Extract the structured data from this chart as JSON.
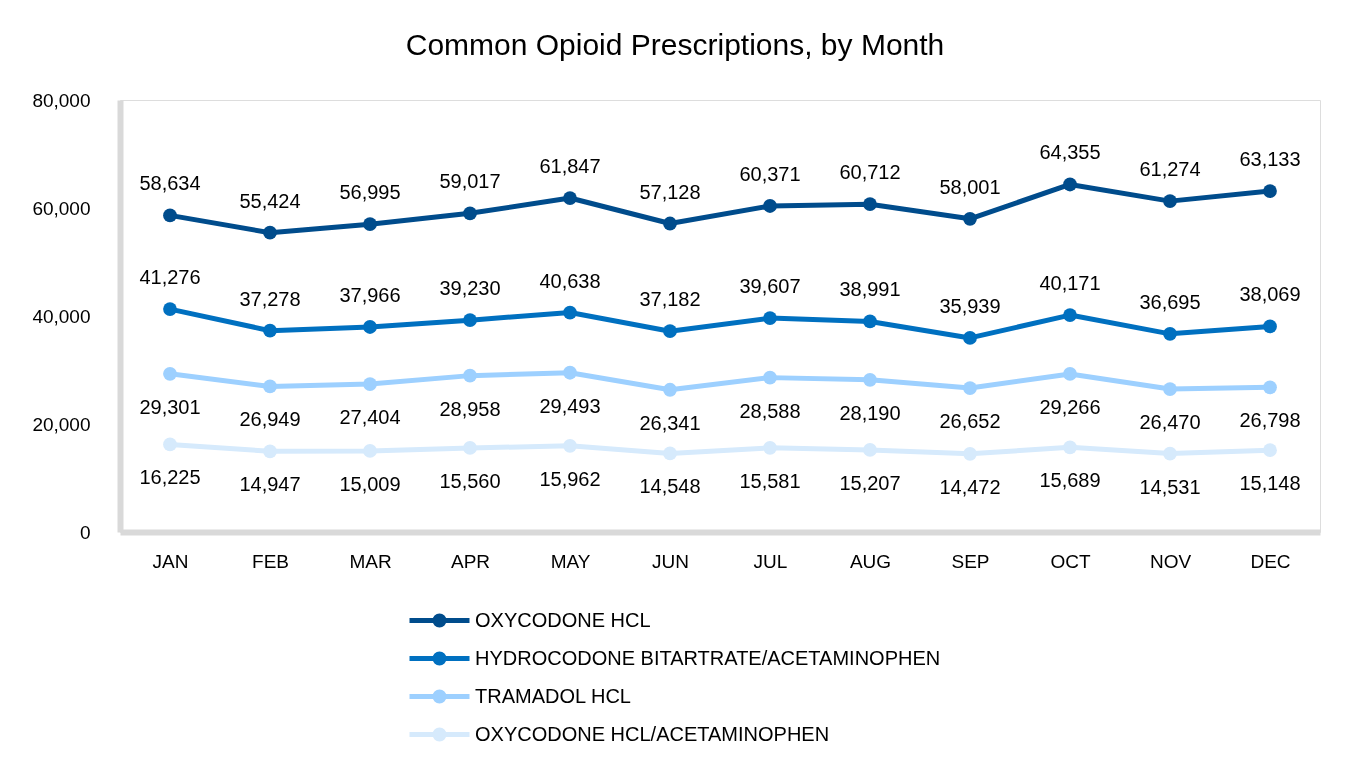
{
  "chart_data": {
    "type": "line",
    "title": "Common Opioid Prescriptions, by Month",
    "categories": [
      "JAN",
      "FEB",
      "MAR",
      "APR",
      "MAY",
      "JUN",
      "JUL",
      "AUG",
      "SEP",
      "OCT",
      "NOV",
      "DEC"
    ],
    "series": [
      {
        "name": "OXYCODONE HCL",
        "color": "#004c8c",
        "values": [
          58634,
          55424,
          56995,
          59017,
          61847,
          57128,
          60371,
          60712,
          58001,
          64355,
          61274,
          63133
        ],
        "value_labels": [
          "58,634",
          "55,424",
          "56,995",
          "59,017",
          "61,847",
          "57,128",
          "60,371",
          "60,712",
          "58,001",
          "64,355",
          "61,274",
          "63,133"
        ]
      },
      {
        "name": "HYDROCODONE BITARTRATE/ACETAMINOPHEN",
        "color": "#0070c0",
        "values": [
          41276,
          37278,
          37966,
          39230,
          40638,
          37182,
          39607,
          38991,
          35939,
          40171,
          36695,
          38069
        ],
        "value_labels": [
          "41,276",
          "37,278",
          "37,966",
          "39,230",
          "40,638",
          "37,182",
          "39,607",
          "38,991",
          "35,939",
          "40,171",
          "36,695",
          "38,069"
        ]
      },
      {
        "name": "TRAMADOL HCL",
        "color": "#9dd0ff",
        "values": [
          29301,
          26949,
          27404,
          28958,
          29493,
          26341,
          28588,
          28190,
          26652,
          29266,
          26470,
          26798
        ],
        "value_labels": [
          "29,301",
          "26,949",
          "27,404",
          "28,958",
          "29,493",
          "26,341",
          "28,588",
          "28,190",
          "26,652",
          "29,266",
          "26,470",
          "26,798"
        ]
      },
      {
        "name": "OXYCODONE HCL/ACETAMINOPHEN",
        "color": "#d6eafc",
        "values": [
          16225,
          14947,
          15009,
          15560,
          15962,
          14548,
          15581,
          15207,
          14472,
          15689,
          14531,
          15148
        ],
        "value_labels": [
          "16,225",
          "14,947",
          "15,009",
          "15,560",
          "15,962",
          "14,548",
          "15,581",
          "15,207",
          "14,472",
          "15,689",
          "14,531",
          "15,148"
        ]
      }
    ],
    "ylim": [
      0,
      80000
    ],
    "yticks": [
      0,
      {
        "value": 20000,
        "label": "20,000"
      },
      {
        "value": 40000,
        "label": "40,000"
      },
      {
        "value": 60000,
        "label": "60,000"
      },
      {
        "value": 80000,
        "label": "80,000"
      }
    ],
    "grid": false,
    "legend": "bottom",
    "marker": "circle",
    "line_style": "solid"
  }
}
